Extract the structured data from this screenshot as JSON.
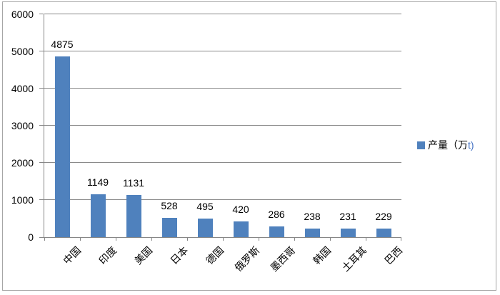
{
  "chart_data": {
    "type": "bar",
    "title": "",
    "categories": [
      "中国",
      "印度",
      "美国",
      "日本",
      "德国",
      "俄罗斯",
      "墨西哥",
      "韩国",
      "土耳其",
      "巴西"
    ],
    "series": [
      {
        "name": "产量（万t)",
        "values": [
          4875,
          1149,
          1131,
          528,
          495,
          420,
          286,
          238,
          231,
          229
        ]
      }
    ],
    "data_labels_shown": true,
    "ylim": [
      0,
      6000
    ],
    "yticks": [
      0,
      1000,
      2000,
      3000,
      4000,
      5000,
      6000
    ],
    "xlabel": "",
    "ylabel": "",
    "grid": true,
    "legend_position": "right",
    "x_label_rotation_deg": 45
  },
  "legend": {
    "marker": "blue-square",
    "text_main": "产量（万",
    "text_suffix": "t)"
  },
  "colors": {
    "bar": "#4f81bd",
    "gridline": "#8a8a8a",
    "axis": "#868686",
    "frame_border": "#a6a6a6",
    "legend_suffix_text": "#4472c4",
    "text": "#000000"
  }
}
